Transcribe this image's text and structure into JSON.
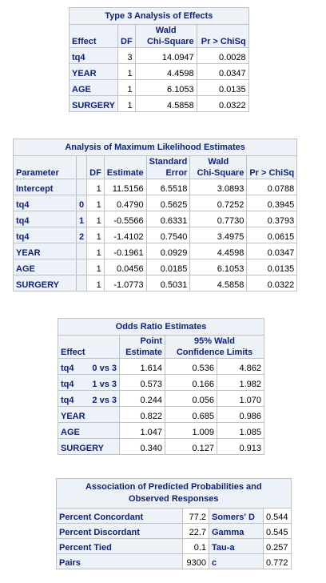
{
  "type3": {
    "title": "Type 3 Analysis of Effects",
    "headers": {
      "effect": "Effect",
      "df": "DF",
      "wald_top": "Wald",
      "wald_bottom": "Chi-Square",
      "p": "Pr > ChiSq"
    },
    "rows": [
      {
        "effect": "tq4",
        "df": "3",
        "chisq": "14.0947",
        "p": "0.0028"
      },
      {
        "effect": "YEAR",
        "df": "1",
        "chisq": "4.4598",
        "p": "0.0347"
      },
      {
        "effect": "AGE",
        "df": "1",
        "chisq": "6.1053",
        "p": "0.0135"
      },
      {
        "effect": "SURGERY",
        "df": "1",
        "chisq": "4.5858",
        "p": "0.0322"
      }
    ]
  },
  "mle": {
    "title": "Analysis of Maximum Likelihood Estimates",
    "headers": {
      "parameter": "Parameter",
      "df": "DF",
      "estimate": "Estimate",
      "se_top": "Standard",
      "se_bottom": "Error",
      "wald_top": "Wald",
      "wald_bottom": "Chi-Square",
      "p": "Pr > ChiSq"
    },
    "rows": [
      {
        "param": "Intercept",
        "level": "",
        "df": "1",
        "est": "11.5156",
        "se": "6.5518",
        "chisq": "3.0893",
        "p": "0.0788"
      },
      {
        "param": "tq4",
        "level": "0",
        "df": "1",
        "est": "0.4790",
        "se": "0.5625",
        "chisq": "0.7252",
        "p": "0.3945"
      },
      {
        "param": "tq4",
        "level": "1",
        "df": "1",
        "est": "-0.5566",
        "se": "0.6331",
        "chisq": "0.7730",
        "p": "0.3793"
      },
      {
        "param": "tq4",
        "level": "2",
        "df": "1",
        "est": "-1.4102",
        "se": "0.7540",
        "chisq": "3.4975",
        "p": "0.0615"
      },
      {
        "param": "YEAR",
        "level": "",
        "df": "1",
        "est": "-0.1961",
        "se": "0.0929",
        "chisq": "4.4598",
        "p": "0.0347"
      },
      {
        "param": "AGE",
        "level": "",
        "df": "1",
        "est": "0.0456",
        "se": "0.0185",
        "chisq": "6.1053",
        "p": "0.0135"
      },
      {
        "param": "SURGERY",
        "level": "",
        "df": "1",
        "est": "-1.0773",
        "se": "0.5031",
        "chisq": "4.5858",
        "p": "0.0322"
      }
    ]
  },
  "odds": {
    "title": "Odds Ratio Estimates",
    "headers": {
      "effect": "Effect",
      "point_top": "Point",
      "point_bottom": "Estimate",
      "ci_top": "95% Wald",
      "ci_bottom": "Confidence Limits"
    },
    "rows": [
      {
        "effect": "tq4",
        "comp": "0 vs 3",
        "est": "1.614",
        "lower": "0.536",
        "upper": "4.862"
      },
      {
        "effect": "tq4",
        "comp": "1 vs 3",
        "est": "0.573",
        "lower": "0.166",
        "upper": "1.982"
      },
      {
        "effect": "tq4",
        "comp": "2 vs 3",
        "est": "0.244",
        "lower": "0.056",
        "upper": "1.070"
      },
      {
        "effect": "YEAR",
        "comp": "",
        "est": "0.822",
        "lower": "0.685",
        "upper": "0.986"
      },
      {
        "effect": "AGE",
        "comp": "",
        "est": "1.047",
        "lower": "1.009",
        "upper": "1.085"
      },
      {
        "effect": "SURGERY",
        "comp": "",
        "est": "0.340",
        "lower": "0.127",
        "upper": "0.913"
      }
    ]
  },
  "assoc": {
    "title_line1": "Association of Predicted Probabilities and",
    "title_line2": "Observed Responses",
    "rows": [
      {
        "label": "Percent Concordant",
        "value": "77.2",
        "stat": "Somers' D",
        "stat_value": "0.544"
      },
      {
        "label": "Percent Discordant",
        "value": "22.7",
        "stat": "Gamma",
        "stat_value": "0.545"
      },
      {
        "label": "Percent Tied",
        "value": "0.1",
        "stat": "Tau-a",
        "stat_value": "0.257"
      },
      {
        "label": "Pairs",
        "value": "9300",
        "stat": "c",
        "stat_value": "0.772"
      }
    ]
  }
}
